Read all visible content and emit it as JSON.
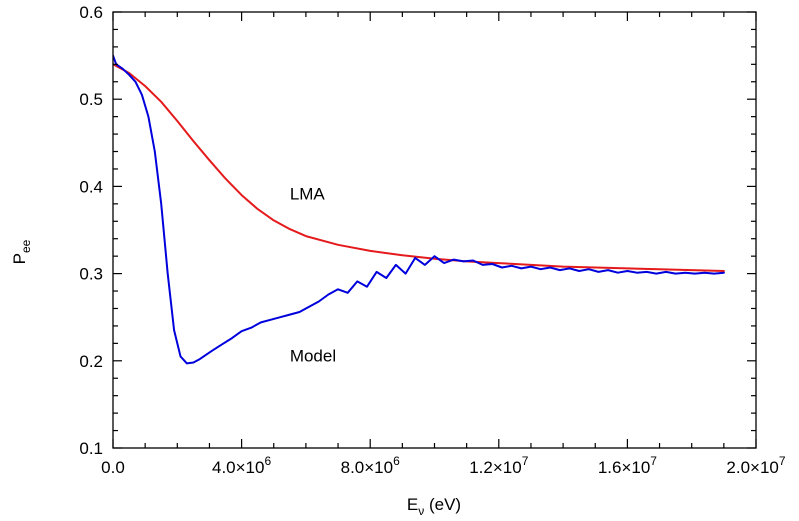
{
  "chart_data": {
    "type": "line",
    "xlabel": "Eν (eV)",
    "xlabel_parts": {
      "main": "E",
      "sub": "ν",
      "rest": " (eV)"
    },
    "ylabel": "Pee",
    "ylabel_parts": {
      "main": "P",
      "sub": "ee"
    },
    "xlim": [
      0,
      20000000
    ],
    "ylim": [
      0.1,
      0.6
    ],
    "x_ticks": [
      {
        "value": 0,
        "label": "0.0"
      },
      {
        "value": 4000000,
        "mant": "4.0×10",
        "exp": "6"
      },
      {
        "value": 8000000,
        "mant": "8.0×10",
        "exp": "6"
      },
      {
        "value": 12000000,
        "mant": "1.2×10",
        "exp": "7"
      },
      {
        "value": 16000000,
        "mant": "1.6×10",
        "exp": "7"
      },
      {
        "value": 20000000,
        "mant": "2.0×10",
        "exp": "7"
      }
    ],
    "y_ticks": [
      {
        "value": 0.1,
        "label": "0.1"
      },
      {
        "value": 0.2,
        "label": "0.2"
      },
      {
        "value": 0.3,
        "label": "0.3"
      },
      {
        "value": 0.4,
        "label": "0.4"
      },
      {
        "value": 0.5,
        "label": "0.5"
      },
      {
        "value": 0.6,
        "label": "0.6"
      }
    ],
    "grid": false,
    "series": [
      {
        "name": "LMA",
        "color": "#e41a1c",
        "x": [
          0,
          500000,
          1000000,
          1500000,
          2000000,
          2500000,
          3000000,
          3500000,
          4000000,
          4500000,
          5000000,
          5500000,
          6000000,
          7000000,
          8000000,
          9000000,
          10000000,
          11000000,
          12000000,
          13000000,
          14000000,
          15000000,
          16000000,
          17000000,
          18000000,
          19000000
        ],
        "y": [
          0.54,
          0.53,
          0.515,
          0.497,
          0.475,
          0.452,
          0.43,
          0.409,
          0.39,
          0.374,
          0.361,
          0.351,
          0.343,
          0.333,
          0.326,
          0.321,
          0.317,
          0.314,
          0.312,
          0.31,
          0.308,
          0.307,
          0.306,
          0.305,
          0.304,
          0.303
        ]
      },
      {
        "name": "Model",
        "color": "#0000dd",
        "x": [
          0,
          100000,
          300000,
          500000,
          700000,
          900000,
          1100000,
          1300000,
          1500000,
          1700000,
          1900000,
          2100000,
          2300000,
          2500000,
          2700000,
          2900000,
          3100000,
          3400000,
          3700000,
          4000000,
          4300000,
          4600000,
          4900000,
          5200000,
          5500000,
          5800000,
          6100000,
          6400000,
          6700000,
          7000000,
          7300000,
          7600000,
          7900000,
          8200000,
          8500000,
          8800000,
          9100000,
          9400000,
          9700000,
          10000000,
          10300000,
          10600000,
          10900000,
          11200000,
          11500000,
          11800000,
          12100000,
          12400000,
          12700000,
          13000000,
          13300000,
          13600000,
          13900000,
          14200000,
          14500000,
          14800000,
          15100000,
          15400000,
          15700000,
          16000000,
          16300000,
          16600000,
          16900000,
          17200000,
          17500000,
          17800000,
          18100000,
          18400000,
          18700000,
          19000000
        ],
        "y": [
          0.55,
          0.54,
          0.535,
          0.528,
          0.52,
          0.505,
          0.48,
          0.44,
          0.38,
          0.3,
          0.235,
          0.205,
          0.197,
          0.198,
          0.202,
          0.207,
          0.212,
          0.219,
          0.226,
          0.234,
          0.238,
          0.244,
          0.247,
          0.25,
          0.253,
          0.256,
          0.262,
          0.268,
          0.276,
          0.282,
          0.278,
          0.291,
          0.285,
          0.302,
          0.295,
          0.31,
          0.3,
          0.318,
          0.31,
          0.32,
          0.312,
          0.316,
          0.314,
          0.315,
          0.31,
          0.311,
          0.307,
          0.309,
          0.306,
          0.308,
          0.305,
          0.307,
          0.304,
          0.306,
          0.303,
          0.305,
          0.302,
          0.304,
          0.301,
          0.303,
          0.301,
          0.302,
          0.3,
          0.302,
          0.3,
          0.301,
          0.3,
          0.301,
          0.3,
          0.301
        ]
      }
    ],
    "annotations": [
      {
        "text": "LMA",
        "x": 5500000,
        "y": 0.385
      },
      {
        "text": "Model",
        "x": 5500000,
        "y": 0.199
      }
    ]
  }
}
